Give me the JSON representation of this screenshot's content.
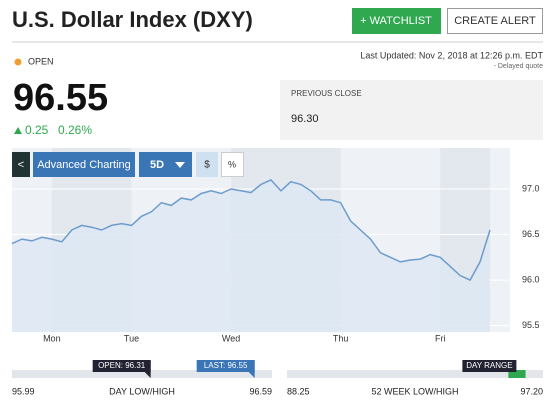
{
  "header": {
    "title": "U.S. Dollar Index (DXY)",
    "watchlist_button": "+ WATCHLIST",
    "alert_button": "CREATE ALERT"
  },
  "quote": {
    "status": "OPEN",
    "last_updated": "Last Updated: Nov 2, 2018 at 12:26 p.m. EDT",
    "delayed": "- Delayed quote",
    "price": "96.55",
    "change": "0.25",
    "change_percent": "0.26%",
    "previous_close_label": "PREVIOUS CLOSE",
    "previous_close": "96.30"
  },
  "toolbar": {
    "back": "<",
    "advanced": "Advanced Charting",
    "range": "5D",
    "dollar": "$",
    "percent": "%"
  },
  "chart": {
    "type": "line",
    "color": "#6d9ccc",
    "fill": "#dde8f3",
    "categories": [
      null,
      null,
      null,
      null,
      "Mon",
      null,
      null,
      null,
      null,
      null,
      null,
      null,
      "Tue",
      null,
      null,
      null,
      null,
      null,
      null,
      null,
      null,
      null,
      "Wed",
      null,
      null,
      null,
      null,
      null,
      null,
      null,
      null,
      null,
      null,
      "Thu",
      null,
      null,
      null,
      null,
      null,
      null,
      null,
      null,
      null,
      "Fri",
      null,
      null,
      null,
      null,
      null
    ],
    "values": [
      96.4,
      96.45,
      96.43,
      96.47,
      96.45,
      96.42,
      96.55,
      96.6,
      96.58,
      96.55,
      96.6,
      96.62,
      96.6,
      96.7,
      96.75,
      96.85,
      96.82,
      96.9,
      96.88,
      96.95,
      96.98,
      96.95,
      97.0,
      96.98,
      96.96,
      97.05,
      97.1,
      96.98,
      97.08,
      97.05,
      96.98,
      96.88,
      96.88,
      96.85,
      96.65,
      96.55,
      96.45,
      96.3,
      96.25,
      96.2,
      96.22,
      96.23,
      96.28,
      96.25,
      96.15,
      96.05,
      96.0,
      96.2,
      96.55
    ],
    "ylim": [
      95.43,
      97.45
    ],
    "yticks": [
      {
        "value": 95.5,
        "label": "95.5"
      },
      {
        "value": 96,
        "label": "96.0"
      },
      {
        "value": 96.5,
        "label": "96.5"
      },
      {
        "value": 97,
        "label": "97.0"
      }
    ],
    "grid": true
  },
  "day_range": {
    "low": 95.99,
    "high": 96.59,
    "open_label": "OPEN:",
    "open": 96.31,
    "last_label": "LAST:",
    "last": 96.55,
    "caption": "DAY LOW/HIGH"
  },
  "week52_range": {
    "low": 88.25,
    "high": 97.2,
    "low_label": "88.25",
    "high_label": "97.20",
    "marker_label": "DAY RANGE",
    "caption": "52 WEEK LOW/HIGH"
  }
}
